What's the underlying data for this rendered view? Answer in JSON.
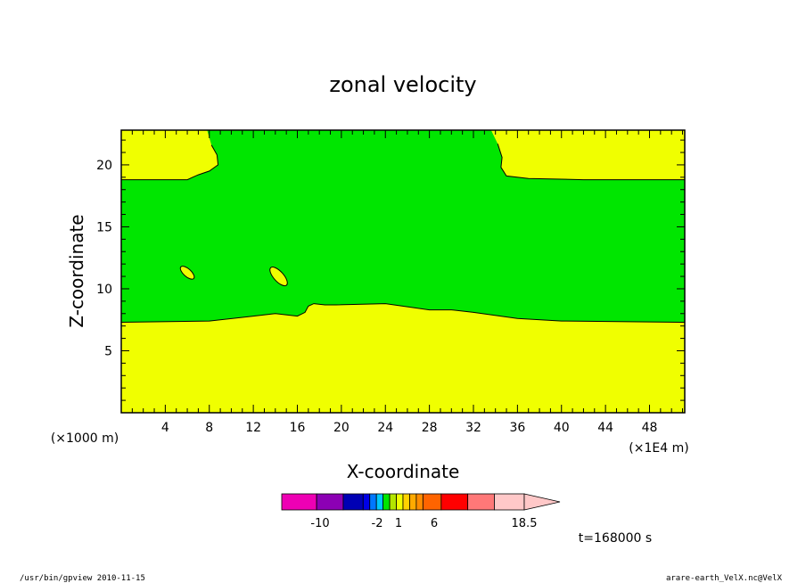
{
  "chart_data": {
    "type": "contour",
    "title": "zonal velocity",
    "xlabel": "X-coordinate",
    "ylabel": "Z-coordinate",
    "x_unit_label": "(×1E4 m)",
    "y_unit_label": "(×1000 m)",
    "xlim": [
      0,
      51.2
    ],
    "ylim": [
      0,
      22.8
    ],
    "x_ticks": [
      "4",
      "8",
      "12",
      "16",
      "20",
      "24",
      "28",
      "32",
      "36",
      "40",
      "44",
      "48"
    ],
    "y_ticks": [
      "5",
      "10",
      "15",
      "20"
    ],
    "time_label": "t=168000 s",
    "footer_left": "/usr/bin/gpview   2010-11-15",
    "footer_right": "arare-earth_VelX.nc@VelX",
    "regions": [
      {
        "name": "lower band",
        "color": "#f0ff00",
        "boundary_top": [
          [
            0,
            7.3
          ],
          [
            8,
            7.4
          ],
          [
            12,
            7.8
          ],
          [
            14,
            8.0
          ],
          [
            16,
            7.8
          ],
          [
            16.7,
            8.1
          ],
          [
            17,
            8.6
          ],
          [
            17.5,
            8.8
          ],
          [
            18.5,
            8.7
          ],
          [
            19.5,
            8.7
          ],
          [
            24,
            8.8
          ],
          [
            28,
            8.3
          ],
          [
            30,
            8.3
          ],
          [
            32,
            8.1
          ],
          [
            36,
            7.6
          ],
          [
            40,
            7.4
          ],
          [
            51.2,
            7.3
          ]
        ]
      },
      {
        "name": "upper left patch",
        "color": "#f0ff00",
        "boundary": [
          [
            0,
            18.8
          ],
          [
            6,
            18.8
          ],
          [
            6.5,
            19.0
          ],
          [
            7,
            19.2
          ],
          [
            8,
            19.5
          ],
          [
            8.8,
            20.0
          ],
          [
            8.7,
            20.8
          ],
          [
            8.2,
            21.6
          ],
          [
            7.8,
            22.8
          ],
          [
            0,
            22.8
          ]
        ]
      },
      {
        "name": "upper right patch",
        "color": "#f0ff00",
        "boundary": [
          [
            51.2,
            18.8
          ],
          [
            42,
            18.8
          ],
          [
            37,
            18.9
          ],
          [
            35,
            19.1
          ],
          [
            34.5,
            19.8
          ],
          [
            34.6,
            20.6
          ],
          [
            34.2,
            21.7
          ],
          [
            33.6,
            22.8
          ],
          [
            51.2,
            22.8
          ]
        ]
      },
      {
        "name": "small ellipse 1",
        "color": "#f0ff00",
        "center": [
          6,
          11.3
        ],
        "radius_x": 0.35,
        "radius_y": 0.7,
        "rotation": -48
      },
      {
        "name": "small ellipse 2",
        "color": "#f0ff00",
        "center": [
          14.3,
          11.0
        ],
        "radius_x": 0.45,
        "radius_y": 0.95,
        "rotation": -42
      }
    ],
    "background_color": "#00e600",
    "colorbar": {
      "colors": [
        "#ee00b4",
        "#8c00b4",
        "#0000b4",
        "#0000e6",
        "#0078ff",
        "#00c8ff",
        "#00e600",
        "#b4e600",
        "#f0ff00",
        "#ffd200",
        "#ffaa00",
        "#ff8c00",
        "#ff6400",
        "#ff0000",
        "#ff7878",
        "#ffc8c8"
      ],
      "labels": [
        "-10",
        "-2",
        "1",
        "6",
        "18.5"
      ]
    }
  }
}
